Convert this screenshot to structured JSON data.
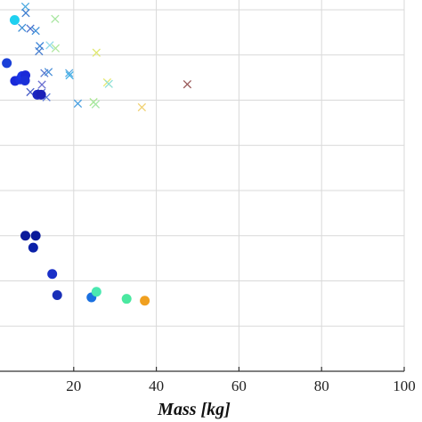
{
  "chart_data": {
    "type": "scatter",
    "xlabel": "Mass [kg]",
    "xlim": [
      0,
      100
    ],
    "x_ticks": [
      20,
      40,
      60,
      80,
      100
    ],
    "x_tick_labels": [
      "20",
      "40",
      "60",
      "80",
      "100"
    ],
    "ylim": [
      0,
      1
    ],
    "grid": true,
    "series": [
      {
        "marker": "x",
        "points": [
          {
            "x": 8.3,
            "y": 0.982,
            "color": "#4aa8e0"
          },
          {
            "x": 8.4,
            "y": 0.965,
            "color": "#3f7fd0"
          },
          {
            "x": 7.5,
            "y": 0.925,
            "color": "#3f8fd6"
          },
          {
            "x": 9.5,
            "y": 0.923,
            "color": "#4a6fcc"
          },
          {
            "x": 10.8,
            "y": 0.917,
            "color": "#3e8fd8"
          },
          {
            "x": 15.5,
            "y": 0.949,
            "color": "#a8e6a0"
          },
          {
            "x": 11.8,
            "y": 0.876,
            "color": "#3f86d8"
          },
          {
            "x": 11.6,
            "y": 0.862,
            "color": "#4a80d0"
          },
          {
            "x": 14.2,
            "y": 0.878,
            "color": "#8fd8e8"
          },
          {
            "x": 15.6,
            "y": 0.87,
            "color": "#b0e8a0"
          },
          {
            "x": 25.5,
            "y": 0.858,
            "color": "#e0e870"
          },
          {
            "x": 12.9,
            "y": 0.803,
            "color": "#5a7ad0"
          },
          {
            "x": 13.9,
            "y": 0.806,
            "color": "#4a8fd8"
          },
          {
            "x": 18.9,
            "y": 0.803,
            "color": "#5aaae0"
          },
          {
            "x": 19.0,
            "y": 0.797,
            "color": "#3fb0e8"
          },
          {
            "x": 28.1,
            "y": 0.778,
            "color": "#e8e870"
          },
          {
            "x": 28.5,
            "y": 0.774,
            "color": "#8fe0d8"
          },
          {
            "x": 47.5,
            "y": 0.773,
            "color": "#9a5a5a"
          },
          {
            "x": 12.3,
            "y": 0.772,
            "color": "#6a6fd0"
          },
          {
            "x": 9.5,
            "y": 0.752,
            "color": "#4a5fc8"
          },
          {
            "x": 12.2,
            "y": 0.75,
            "color": "#5a6fd0"
          },
          {
            "x": 13.4,
            "y": 0.738,
            "color": "#5a7ad8"
          },
          {
            "x": 21.0,
            "y": 0.721,
            "color": "#4aa0e0"
          },
          {
            "x": 24.8,
            "y": 0.725,
            "color": "#a8e890"
          },
          {
            "x": 25.3,
            "y": 0.719,
            "color": "#a8e8a8"
          },
          {
            "x": 36.5,
            "y": 0.711,
            "color": "#f0d070"
          }
        ]
      },
      {
        "marker": "o",
        "points": [
          {
            "x": 5.7,
            "y": 0.946,
            "color": "#1fd0f0"
          },
          {
            "x": 3.8,
            "y": 0.83,
            "color": "#1a40d8"
          },
          {
            "x": 5.8,
            "y": 0.782,
            "color": "#1a2ad8"
          },
          {
            "x": 7.0,
            "y": 0.786,
            "color": "#1a30e0"
          },
          {
            "x": 7.5,
            "y": 0.795,
            "color": "#1a35e8"
          },
          {
            "x": 8.3,
            "y": 0.797,
            "color": "#1a2ad8"
          },
          {
            "x": 8.2,
            "y": 0.783,
            "color": "#1a30d8"
          },
          {
            "x": 11.2,
            "y": 0.745,
            "color": "#1a25c0"
          },
          {
            "x": 12.1,
            "y": 0.745,
            "color": "#1a20b8"
          },
          {
            "x": 8.3,
            "y": 0.365,
            "color": "#0a1a9a"
          },
          {
            "x": 10.8,
            "y": 0.365,
            "color": "#0a1a9a"
          },
          {
            "x": 10.2,
            "y": 0.333,
            "color": "#0a20a8"
          },
          {
            "x": 14.8,
            "y": 0.262,
            "color": "#1a30c8"
          },
          {
            "x": 16.0,
            "y": 0.205,
            "color": "#1a30b8"
          },
          {
            "x": 24.3,
            "y": 0.199,
            "color": "#1a70e0"
          },
          {
            "x": 25.5,
            "y": 0.214,
            "color": "#4ae8b0"
          },
          {
            "x": 32.8,
            "y": 0.195,
            "color": "#4ae8a0"
          },
          {
            "x": 37.2,
            "y": 0.19,
            "color": "#f0a020"
          }
        ]
      }
    ]
  }
}
